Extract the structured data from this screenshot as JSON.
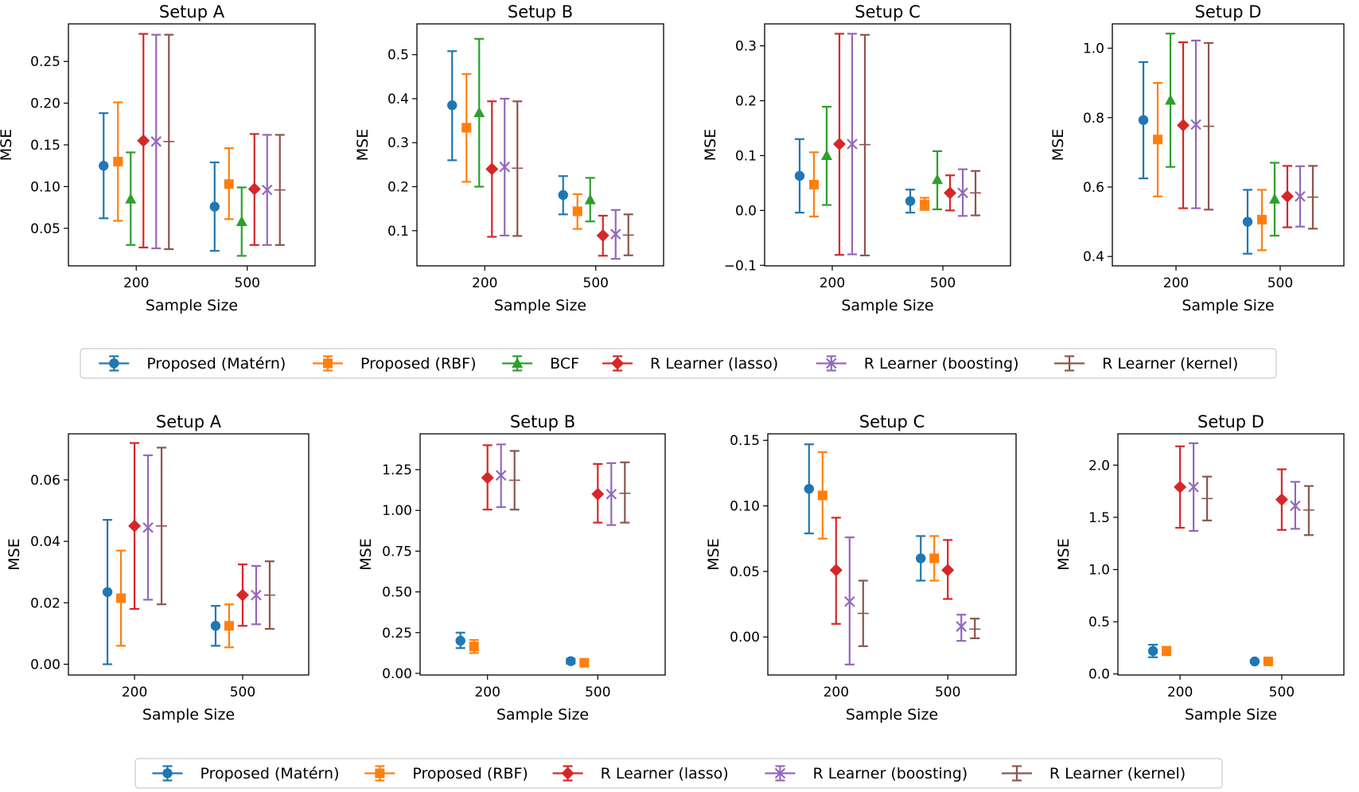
{
  "colors": {
    "matern": "#1f77b4",
    "rbf": "#ff7f0e",
    "bcf": "#2ca02c",
    "lasso": "#d62728",
    "boosting": "#9467bd",
    "kernel": "#8c564b"
  },
  "legends": [
    {
      "entries": [
        {
          "key": "matern",
          "label": "Proposed (Matérn)",
          "marker": "circle"
        },
        {
          "key": "rbf",
          "label": "Proposed (RBF)",
          "marker": "square"
        },
        {
          "key": "bcf",
          "label": "BCF",
          "marker": "triangle"
        },
        {
          "key": "lasso",
          "label": "R Learner (lasso)",
          "marker": "diamond"
        },
        {
          "key": "boosting",
          "label": "R Learner (boosting)",
          "marker": "x"
        },
        {
          "key": "kernel",
          "label": "R Learner (kernel)",
          "marker": "none"
        }
      ]
    },
    {
      "entries": [
        {
          "key": "matern",
          "label": "Proposed (Matérn)",
          "marker": "circle"
        },
        {
          "key": "rbf",
          "label": "Proposed (RBF)",
          "marker": "square"
        },
        {
          "key": "lasso",
          "label": "R Learner (lasso)",
          "marker": "diamond"
        },
        {
          "key": "boosting",
          "label": "R Learner (boosting)",
          "marker": "x"
        },
        {
          "key": "kernel",
          "label": "R Learner (kernel)",
          "marker": "none"
        }
      ]
    }
  ],
  "chart_data": [
    {
      "type": "errorbar",
      "row": 0,
      "title": "Setup A",
      "xlabel": "Sample Size",
      "ylabel": "MSE",
      "categories": [
        "200",
        "500"
      ],
      "ylim": [
        0.005,
        0.295
      ],
      "yticks": [
        0.05,
        0.1,
        0.15,
        0.2,
        0.25
      ],
      "ytick_labels": [
        "0.05",
        "0.10",
        "0.15",
        "0.20",
        "0.25"
      ],
      "series": [
        {
          "key": "matern",
          "points": [
            [
              0.125,
              0.062,
              0.188
            ],
            [
              0.076,
              0.023,
              0.129
            ]
          ]
        },
        {
          "key": "rbf",
          "points": [
            [
              0.13,
              0.059,
              0.201
            ],
            [
              0.103,
              0.061,
              0.146
            ]
          ]
        },
        {
          "key": "bcf",
          "points": [
            [
              0.085,
              0.03,
              0.141
            ],
            [
              0.058,
              0.017,
              0.099
            ]
          ]
        },
        {
          "key": "lasso",
          "points": [
            [
              0.155,
              0.027,
              0.283
            ],
            [
              0.097,
              0.03,
              0.163
            ]
          ]
        },
        {
          "key": "boosting",
          "points": [
            [
              0.154,
              0.026,
              0.282
            ],
            [
              0.096,
              0.03,
              0.162
            ]
          ]
        },
        {
          "key": "kernel",
          "points": [
            [
              0.154,
              0.025,
              0.282
            ],
            [
              0.096,
              0.03,
              0.162
            ]
          ]
        }
      ]
    },
    {
      "type": "errorbar",
      "row": 0,
      "title": "Setup B",
      "xlabel": "Sample Size",
      "ylabel": "MSE",
      "categories": [
        "200",
        "500"
      ],
      "ylim": [
        0.02,
        0.57
      ],
      "yticks": [
        0.1,
        0.2,
        0.3,
        0.4,
        0.5
      ],
      "ytick_labels": [
        "0.1",
        "0.2",
        "0.3",
        "0.4",
        "0.5"
      ],
      "series": [
        {
          "key": "matern",
          "points": [
            [
              0.385,
              0.26,
              0.508
            ],
            [
              0.181,
              0.137,
              0.224
            ]
          ]
        },
        {
          "key": "rbf",
          "points": [
            [
              0.334,
              0.211,
              0.456
            ],
            [
              0.144,
              0.104,
              0.183
            ]
          ]
        },
        {
          "key": "bcf",
          "points": [
            [
              0.368,
              0.2,
              0.536
            ],
            [
              0.17,
              0.121,
              0.22
            ]
          ]
        },
        {
          "key": "lasso",
          "points": [
            [
              0.24,
              0.086,
              0.394
            ],
            [
              0.089,
              0.043,
              0.134
            ]
          ]
        },
        {
          "key": "boosting",
          "points": [
            [
              0.245,
              0.089,
              0.4
            ],
            [
              0.092,
              0.036,
              0.147
            ]
          ]
        },
        {
          "key": "kernel",
          "points": [
            [
              0.242,
              0.088,
              0.394
            ],
            [
              0.09,
              0.044,
              0.137
            ]
          ]
        }
      ]
    },
    {
      "type": "errorbar",
      "row": 0,
      "title": "Setup C",
      "xlabel": "Sample Size",
      "ylabel": "MSE",
      "categories": [
        "200",
        "500"
      ],
      "ylim": [
        -0.101,
        0.34
      ],
      "yticks": [
        -0.1,
        0.0,
        0.1,
        0.2,
        0.3
      ],
      "ytick_labels": [
        "−0.1",
        "0.0",
        "0.1",
        "0.2",
        "0.3"
      ],
      "series": [
        {
          "key": "matern",
          "points": [
            [
              0.063,
              -0.004,
              0.13
            ],
            [
              0.017,
              -0.004,
              0.038
            ]
          ]
        },
        {
          "key": "rbf",
          "points": [
            [
              0.047,
              -0.011,
              0.106
            ],
            [
              0.011,
              0.001,
              0.023
            ]
          ]
        },
        {
          "key": "bcf",
          "points": [
            [
              0.1,
              0.01,
              0.189
            ],
            [
              0.056,
              0.002,
              0.108
            ]
          ]
        },
        {
          "key": "lasso",
          "points": [
            [
              0.121,
              -0.081,
              0.322
            ],
            [
              0.032,
              0.0,
              0.064
            ]
          ]
        },
        {
          "key": "boosting",
          "points": [
            [
              0.121,
              -0.08,
              0.322
            ],
            [
              0.032,
              -0.01,
              0.075
            ]
          ]
        },
        {
          "key": "kernel",
          "points": [
            [
              0.12,
              -0.082,
              0.32
            ],
            [
              0.032,
              -0.009,
              0.072
            ]
          ]
        }
      ]
    },
    {
      "type": "errorbar",
      "row": 0,
      "title": "Setup D",
      "xlabel": "Sample Size",
      "ylabel": "MSE",
      "categories": [
        "200",
        "500"
      ],
      "ylim": [
        0.373,
        1.07
      ],
      "yticks": [
        0.4,
        0.6,
        0.8,
        1.0
      ],
      "ytick_labels": [
        "0.4",
        "0.6",
        "0.8",
        "1.0"
      ],
      "series": [
        {
          "key": "matern",
          "points": [
            [
              0.793,
              0.625,
              0.96
            ],
            [
              0.5,
              0.408,
              0.592
            ]
          ]
        },
        {
          "key": "rbf",
          "points": [
            [
              0.737,
              0.573,
              0.9
            ],
            [
              0.506,
              0.418,
              0.592
            ]
          ]
        },
        {
          "key": "bcf",
          "points": [
            [
              0.85,
              0.658,
              1.042
            ],
            [
              0.565,
              0.46,
              0.67
            ]
          ]
        },
        {
          "key": "lasso",
          "points": [
            [
              0.778,
              0.539,
              1.017
            ],
            [
              0.573,
              0.484,
              0.661
            ]
          ]
        },
        {
          "key": "boosting",
          "points": [
            [
              0.78,
              0.539,
              1.022
            ],
            [
              0.573,
              0.486,
              0.66
            ]
          ]
        },
        {
          "key": "kernel",
          "points": [
            [
              0.775,
              0.535,
              1.015
            ],
            [
              0.571,
              0.48,
              0.661
            ]
          ]
        }
      ]
    },
    {
      "type": "errorbar",
      "row": 1,
      "title": "Setup A",
      "xlabel": "Sample Size",
      "ylabel": "MSE",
      "categories": [
        "200",
        "500"
      ],
      "ylim": [
        -0.0035,
        0.075
      ],
      "yticks": [
        0.0,
        0.02,
        0.04,
        0.06
      ],
      "ytick_labels": [
        "0.00",
        "0.02",
        "0.04",
        "0.06"
      ],
      "series": [
        {
          "key": "matern",
          "points": [
            [
              0.0235,
              0.0,
              0.047
            ],
            [
              0.0125,
              0.006,
              0.019
            ]
          ]
        },
        {
          "key": "rbf",
          "points": [
            [
              0.0215,
              0.006,
              0.037
            ],
            [
              0.0125,
              0.0055,
              0.0195
            ]
          ]
        },
        {
          "key": "lasso",
          "points": [
            [
              0.045,
              0.018,
              0.072
            ],
            [
              0.0225,
              0.0125,
              0.0325
            ]
          ]
        },
        {
          "key": "boosting",
          "points": [
            [
              0.0445,
              0.021,
              0.068
            ],
            [
              0.0225,
              0.013,
              0.032
            ]
          ]
        },
        {
          "key": "kernel",
          "points": [
            [
              0.045,
              0.0195,
              0.0705
            ],
            [
              0.0225,
              0.0115,
              0.0335
            ]
          ]
        }
      ]
    },
    {
      "type": "errorbar",
      "row": 1,
      "title": "Setup B",
      "xlabel": "Sample Size",
      "ylabel": "MSE",
      "categories": [
        "200",
        "500"
      ],
      "ylim": [
        -0.01,
        1.47
      ],
      "yticks": [
        0.0,
        0.25,
        0.5,
        0.75,
        1.0,
        1.25
      ],
      "ytick_labels": [
        "0.00",
        "0.25",
        "0.50",
        "0.75",
        "1.00",
        "1.25"
      ],
      "series": [
        {
          "key": "matern",
          "points": [
            [
              0.2,
              0.155,
              0.25
            ],
            [
              0.075,
              0.06,
              0.09
            ]
          ]
        },
        {
          "key": "rbf",
          "points": [
            [
              0.165,
              0.125,
              0.205
            ],
            [
              0.065,
              0.055,
              0.075
            ]
          ]
        },
        {
          "key": "lasso",
          "points": [
            [
              1.2,
              1.005,
              1.4
            ],
            [
              1.1,
              0.925,
              1.285
            ]
          ]
        },
        {
          "key": "boosting",
          "points": [
            [
              1.215,
              1.02,
              1.405
            ],
            [
              1.1,
              0.91,
              1.29
            ]
          ]
        },
        {
          "key": "kernel",
          "points": [
            [
              1.185,
              1.005,
              1.365
            ],
            [
              1.105,
              0.925,
              1.295
            ]
          ]
        }
      ]
    },
    {
      "type": "errorbar",
      "row": 1,
      "title": "Setup C",
      "xlabel": "Sample Size",
      "ylabel": "MSE",
      "categories": [
        "200",
        "500"
      ],
      "ylim": [
        -0.029,
        0.155
      ],
      "yticks": [
        0.0,
        0.05,
        0.1,
        0.15
      ],
      "ytick_labels": [
        "0.00",
        "0.05",
        "0.10",
        "0.15"
      ],
      "series": [
        {
          "key": "matern",
          "points": [
            [
              0.113,
              0.079,
              0.147
            ],
            [
              0.06,
              0.043,
              0.077
            ]
          ]
        },
        {
          "key": "rbf",
          "points": [
            [
              0.108,
              0.075,
              0.141
            ],
            [
              0.06,
              0.043,
              0.077
            ]
          ]
        },
        {
          "key": "lasso",
          "points": [
            [
              0.051,
              0.01,
              0.091
            ],
            [
              0.051,
              0.029,
              0.074
            ]
          ]
        },
        {
          "key": "boosting",
          "points": [
            [
              0.027,
              -0.021,
              0.076
            ],
            [
              0.008,
              -0.003,
              0.017
            ]
          ]
        },
        {
          "key": "kernel",
          "points": [
            [
              0.018,
              -0.007,
              0.043
            ],
            [
              0.006,
              -0.001,
              0.014
            ]
          ]
        }
      ]
    },
    {
      "type": "errorbar",
      "row": 1,
      "title": "Setup D",
      "xlabel": "Sample Size",
      "ylabel": "MSE",
      "categories": [
        "200",
        "500"
      ],
      "ylim": [
        -0.01,
        2.3
      ],
      "yticks": [
        0.0,
        0.5,
        1.0,
        1.5,
        2.0
      ],
      "ytick_labels": [
        "0.0",
        "0.5",
        "1.0",
        "1.5",
        "2.0"
      ],
      "series": [
        {
          "key": "matern",
          "points": [
            [
              0.22,
              0.16,
              0.28
            ],
            [
              0.12,
              0.11,
              0.13
            ]
          ]
        },
        {
          "key": "rbf",
          "points": [
            [
              0.22,
              0.18,
              0.26
            ],
            [
              0.12,
              0.11,
              0.13
            ]
          ]
        },
        {
          "key": "lasso",
          "points": [
            [
              1.79,
              1.4,
              2.18
            ],
            [
              1.67,
              1.38,
              1.96
            ]
          ]
        },
        {
          "key": "boosting",
          "points": [
            [
              1.79,
              1.37,
              2.21
            ],
            [
              1.61,
              1.39,
              1.84
            ]
          ]
        },
        {
          "key": "kernel",
          "points": [
            [
              1.68,
              1.47,
              1.89
            ],
            [
              1.57,
              1.33,
              1.8
            ]
          ]
        }
      ]
    }
  ]
}
